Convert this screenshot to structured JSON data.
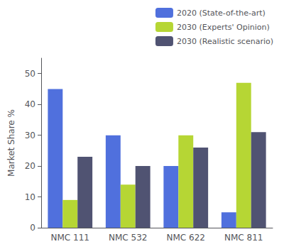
{
  "chart_data": {
    "type": "bar",
    "categories": [
      "NMC 111",
      "NMC 532",
      "NMC 622",
      "NMC 811"
    ],
    "series": [
      {
        "name": "2020 (State-of-the-art)",
        "values": [
          45,
          30,
          20,
          5
        ]
      },
      {
        "name": "2030 (Experts' Opinion)",
        "values": [
          9,
          14,
          30,
          47
        ]
      },
      {
        "name": "2030 (Realistic scenario)",
        "values": [
          23,
          20,
          26,
          31
        ]
      }
    ],
    "ylabel": "Market Share %",
    "ylim": [
      0,
      55
    ],
    "yticks": [
      0,
      10,
      20,
      30,
      40,
      50
    ],
    "grid": false,
    "legend": "upper right"
  }
}
